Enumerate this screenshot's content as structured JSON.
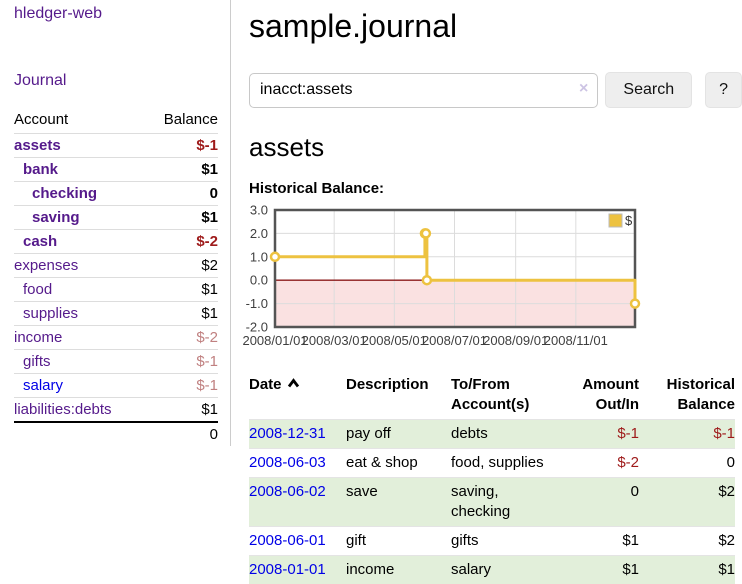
{
  "app": {
    "title": "hledger-web"
  },
  "colors": {
    "link_purple": "#551a8b",
    "link_blue": "#0000e6",
    "neg_strong": "#9e1a1a",
    "neg_soft": "#c08080",
    "stripe_green": "#e2efda"
  },
  "icons": {
    "date_sort": "chevron-up",
    "search_clear": "x-mark",
    "legend_swatch": "yellow-square"
  },
  "sidebar": {
    "journal_link": "Journal",
    "accounts": {
      "headers": {
        "account": "Account",
        "balance": "Balance"
      },
      "rows": [
        {
          "account": "assets",
          "balance": "$-1",
          "level": 0,
          "bold": true,
          "neg": "strong"
        },
        {
          "account": "bank",
          "balance": "$1",
          "level": 1,
          "bold": true
        },
        {
          "account": "checking",
          "balance": "0",
          "level": 2,
          "bold": true
        },
        {
          "account": "saving",
          "balance": "$1",
          "level": 2,
          "bold": true
        },
        {
          "account": "cash",
          "balance": "$-2",
          "level": 1,
          "bold": true,
          "neg": "strong"
        },
        {
          "account": "expenses",
          "balance": "$2",
          "level": 0
        },
        {
          "account": "food",
          "balance": "$1",
          "level": 1
        },
        {
          "account": "supplies",
          "balance": "$1",
          "level": 1
        },
        {
          "account": "income",
          "balance": "$-2",
          "level": 0,
          "neg": "soft"
        },
        {
          "account": "gifts",
          "balance": "$-1",
          "level": 1,
          "neg": "soft"
        },
        {
          "account": "salary",
          "balance": "$-1",
          "level": 1,
          "neg": "soft",
          "link": "blue"
        },
        {
          "account": "liabilities:debts",
          "balance": "$1",
          "level": 0
        }
      ],
      "total": "0"
    }
  },
  "main": {
    "title": "sample.journal",
    "search": {
      "value": "inacct:assets",
      "clear_glyph": "×",
      "search_button": "Search",
      "help_button": "?"
    },
    "account_heading": "assets",
    "chart_heading": "Historical Balance:"
  },
  "chart_data": {
    "type": "line-step",
    "title": "Historical Balance",
    "series": [
      {
        "name": "$",
        "color": "#edc240",
        "points": [
          [
            "2008-01-01",
            1
          ],
          [
            "2008-06-01",
            2
          ],
          [
            "2008-06-02",
            2
          ],
          [
            "2008-06-03",
            0
          ],
          [
            "2008-12-31",
            -1
          ]
        ]
      }
    ],
    "x_range": [
      "2008-01-01",
      "2008-12-31"
    ],
    "ylim": [
      -2.0,
      3.0
    ],
    "y_ticks": [
      3.0,
      2.0,
      1.0,
      0.0,
      -1.0,
      -2.0
    ],
    "x_ticks": [
      "2008/01/01",
      "2008/03/01",
      "2008/05/01",
      "2008/07/01",
      "2008/09/01",
      "2008/11/01"
    ],
    "negative_fill": "#f5c8c8",
    "zero_line_color": "#8b1a1a",
    "grid": true,
    "legend_position": "top-right",
    "legend": "$"
  },
  "register": {
    "headers": {
      "date": "Date",
      "description": "Description",
      "tofrom": [
        "To/From",
        "Account(s)"
      ],
      "amount": [
        "Amount",
        "Out/In"
      ],
      "balance": [
        "Historical",
        "Balance"
      ]
    },
    "rows": [
      {
        "date": "2008-12-31",
        "description": "pay off",
        "accounts": "debts",
        "amount": "$-1",
        "balance": "$-1",
        "amount_neg": true,
        "balance_neg": true
      },
      {
        "date": "2008-06-03",
        "description": "eat & shop",
        "accounts": "food, supplies",
        "amount": "$-2",
        "balance": "0",
        "amount_neg": true
      },
      {
        "date": "2008-06-02",
        "description": "save",
        "accounts": "saving, checking",
        "amount": "0",
        "balance": "$2"
      },
      {
        "date": "2008-06-01",
        "description": "gift",
        "accounts": "gifts",
        "amount": "$1",
        "balance": "$2"
      },
      {
        "date": "2008-01-01",
        "description": "income",
        "accounts": "salary",
        "amount": "$1",
        "balance": "$1"
      }
    ]
  }
}
